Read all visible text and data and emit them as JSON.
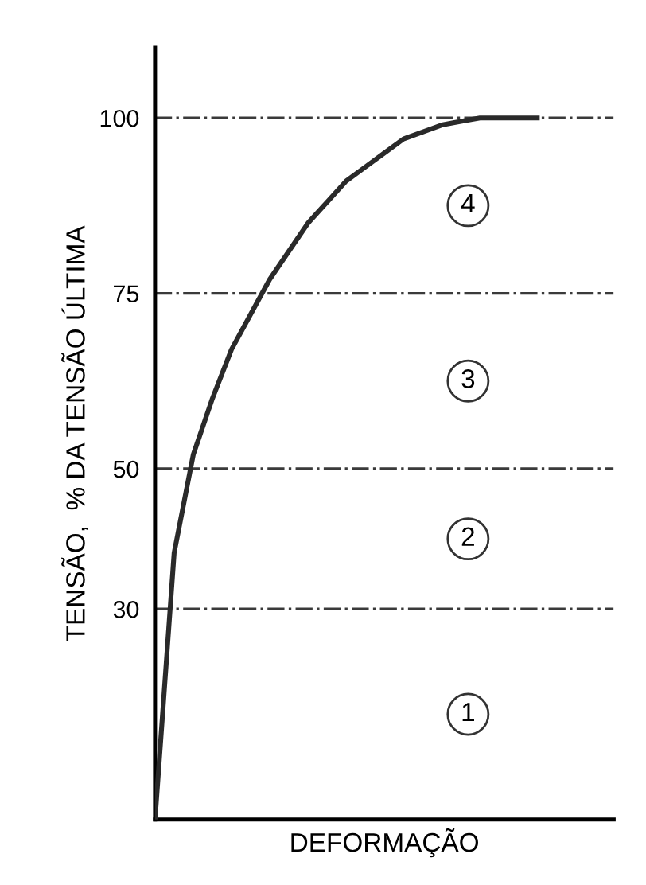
{
  "chart_data": {
    "type": "line",
    "xlabel": "DEFORMAÇÃO",
    "ylabel": "TENSÃO,  % DA TENSÃO ÚLTIMA",
    "categories": [
      null,
      null,
      null,
      null,
      null,
      null,
      null,
      null,
      null,
      null,
      null,
      null,
      null,
      null,
      null,
      null,
      null,
      null,
      null,
      null,
      null
    ],
    "series": [
      {
        "color": "#2a2a2a",
        "values": [
          0,
          38,
          52,
          60,
          67,
          72,
          77,
          81,
          85,
          88,
          91,
          93,
          95,
          97,
          98,
          99,
          99.5,
          100,
          100,
          100,
          100
        ]
      }
    ],
    "ylim": [
      0,
      110
    ],
    "yticks": [
      30,
      50,
      75,
      100
    ],
    "tick_labels": "y",
    "grid": false,
    "legend": false,
    "marker": "none",
    "line_style": "solid",
    "ref_lines": [
      {
        "axis": "y",
        "value": 30,
        "line_style": "dashdot",
        "color": "#3a3a3a"
      },
      {
        "axis": "y",
        "value": 50,
        "line_style": "dashdot",
        "color": "#3a3a3a"
      },
      {
        "axis": "y",
        "value": 75,
        "line_style": "dashdot",
        "color": "#3a3a3a"
      },
      {
        "axis": "y",
        "value": 100,
        "line_style": "dashdot",
        "color": "#3a3a3a"
      }
    ],
    "annotations": [
      {
        "text": "1",
        "y": 15
      },
      {
        "text": "2",
        "y": 40
      },
      {
        "text": "3",
        "y": 62.5
      },
      {
        "text": "4",
        "y": 87.5
      }
    ]
  }
}
